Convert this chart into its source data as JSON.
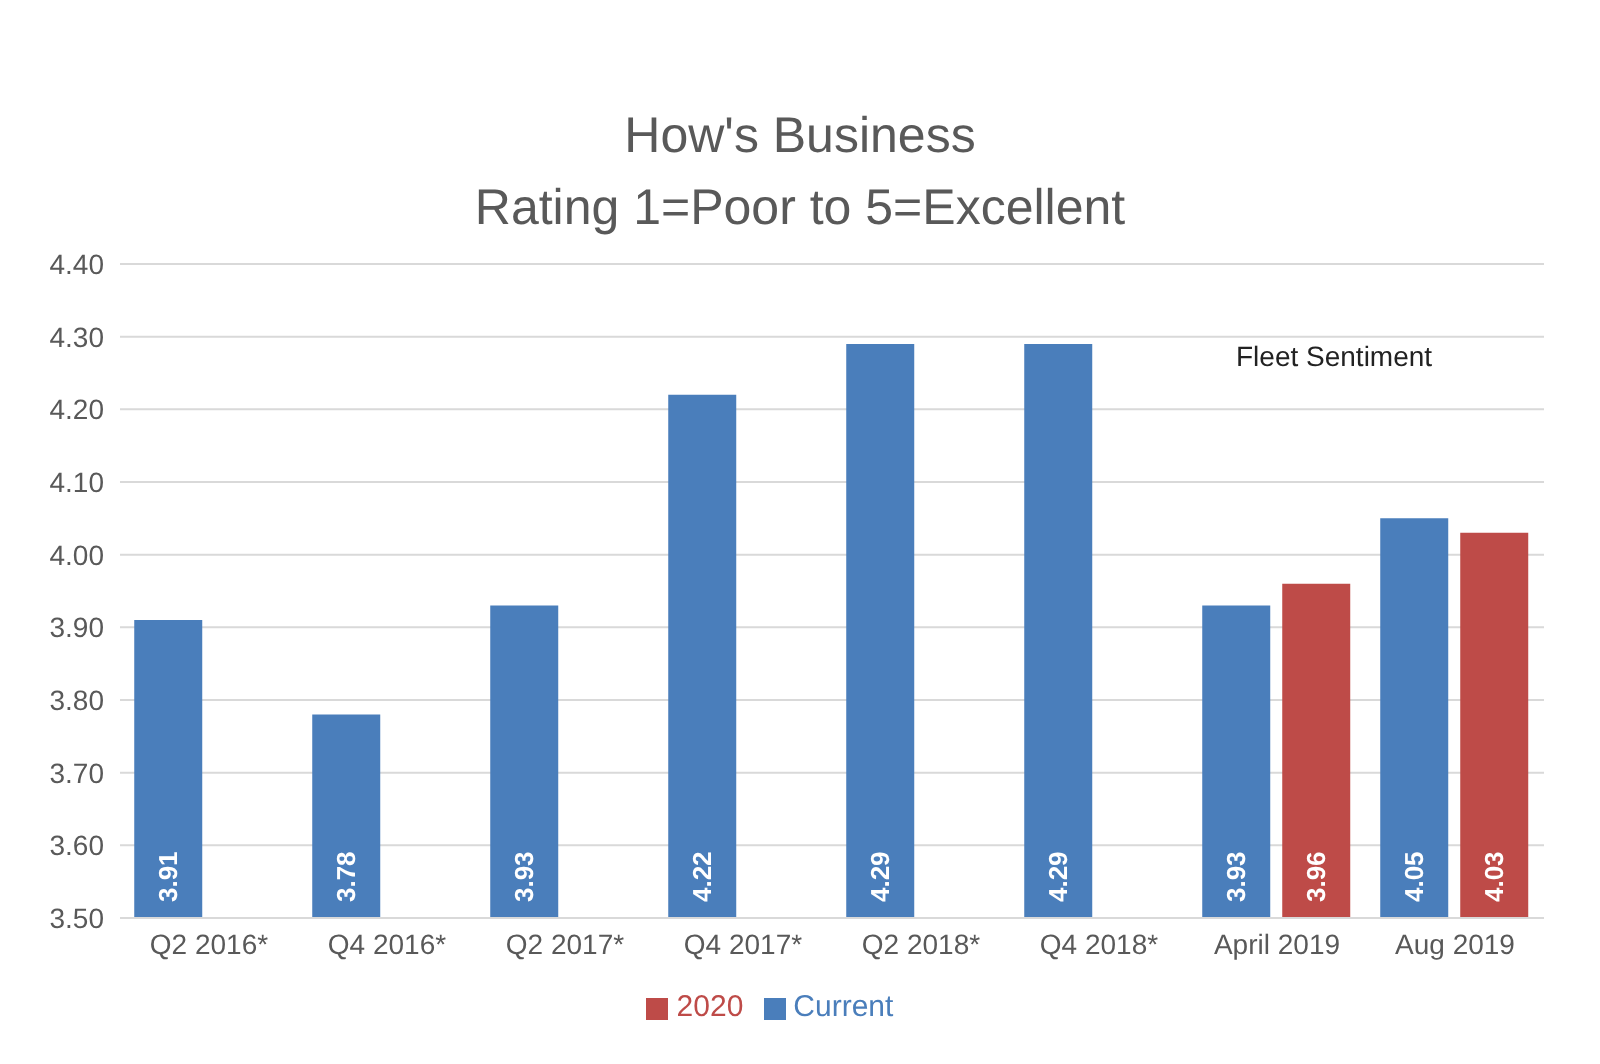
{
  "chart_data": {
    "type": "bar",
    "title": "How's Business",
    "subtitle": "Rating 1=Poor to 5=Excellent",
    "categories": [
      "Q2 2016*",
      "Q4 2016*",
      "Q2 2017*",
      "Q4 2017*",
      "Q2 2018*",
      "Q4 2018*",
      "April 2019",
      "Aug 2019"
    ],
    "series": [
      {
        "name": "Current",
        "color": "#4a7ebb",
        "values": [
          3.91,
          3.78,
          3.93,
          4.22,
          4.29,
          4.29,
          3.93,
          4.05
        ]
      },
      {
        "name": "2020",
        "color": "#be4b48",
        "values": [
          null,
          null,
          null,
          null,
          null,
          null,
          3.96,
          4.03
        ]
      }
    ],
    "ylim": [
      3.5,
      4.4
    ],
    "yticks": [
      {
        "value": 3.5,
        "label": "3.50"
      },
      {
        "value": 3.6,
        "label": "3.60"
      },
      {
        "value": 3.7,
        "label": "3.70"
      },
      {
        "value": 3.8,
        "label": "3.80"
      },
      {
        "value": 3.9,
        "label": "3.90"
      },
      {
        "value": 4.0,
        "label": "4.00"
      },
      {
        "value": 4.1,
        "label": "4.10"
      },
      {
        "value": 4.2,
        "label": "4.20"
      },
      {
        "value": 4.3,
        "label": "4.30"
      },
      {
        "value": 4.4,
        "label": "4.40"
      }
    ],
    "grid": "y",
    "legend": "bottom",
    "data_labels": true,
    "annotations": [
      "Fleet Sentiment"
    ]
  }
}
